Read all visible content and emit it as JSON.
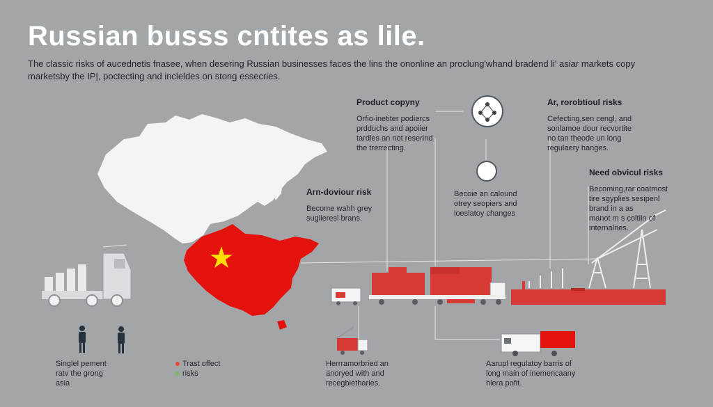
{
  "header": {
    "title": "Russian busss cntites as lile.",
    "intro_line1": "The classic risks of aucednetis fnasee, when desering Russian businesses faces the lins the ononline an proclung'whand bradend li' asiar markets",
    "intro_line2": "copy marketsby the IP|, poctecting and incleldes on stong essecries."
  },
  "annotations": {
    "product_copying": {
      "heading": "Product copyny",
      "lines": [
        "Orfio-inetiter podiercs",
        "prdduchs and apoiier",
        "tardles an not reserind",
        "the trerrecting."
      ]
    },
    "ar_probotioul": {
      "heading": "Ar, rorobtioul risks",
      "lines": [
        "Cefecting,sen cengl, and",
        "sonlamoe dour recvortite",
        "no tan theode un long",
        "regulaery hanges."
      ]
    },
    "need_obvicul": {
      "heading": "Need obvicul risks",
      "lines": [
        "Becoming,rar coatmost",
        "tire sgyplies sesipenl",
        "brand in a as",
        "manot m s coltiin of",
        "internalries."
      ]
    },
    "am_dovioul": {
      "heading": "Arn-doviour risk",
      "lines": [
        "Become wahh grey",
        "suglieresl brans."
      ]
    },
    "becoie": {
      "lines": [
        "Becoie an calound",
        "otrey seopiers and",
        "loeslatoy changes"
      ]
    },
    "single_pement": {
      "lines": [
        "Singlel pement",
        "ratv the grong",
        "asia"
      ]
    },
    "hernamorbried": {
      "lines": [
        "Herrramorbried an",
        "anoryed with and",
        "recegbietharies."
      ]
    },
    "aarupl": {
      "lines": [
        "Aarupl regulatoy barris of",
        "long main of inemencaany",
        "hlera pofit."
      ]
    }
  },
  "legend": {
    "items": [
      {
        "label": "Trast offect",
        "color": "#e8453c"
      },
      {
        "label": "risks",
        "color": "#7fb86a"
      }
    ]
  },
  "colors": {
    "background": "#a3a6a9",
    "china_red": "#e4120d",
    "star": "#ffde00",
    "container_red": "#d73a34",
    "map_white": "#f3f4f5"
  },
  "icons": [
    "compass-icon",
    "network-icon",
    "person-icon",
    "truck-icon",
    "crane-icon",
    "star-icon"
  ]
}
